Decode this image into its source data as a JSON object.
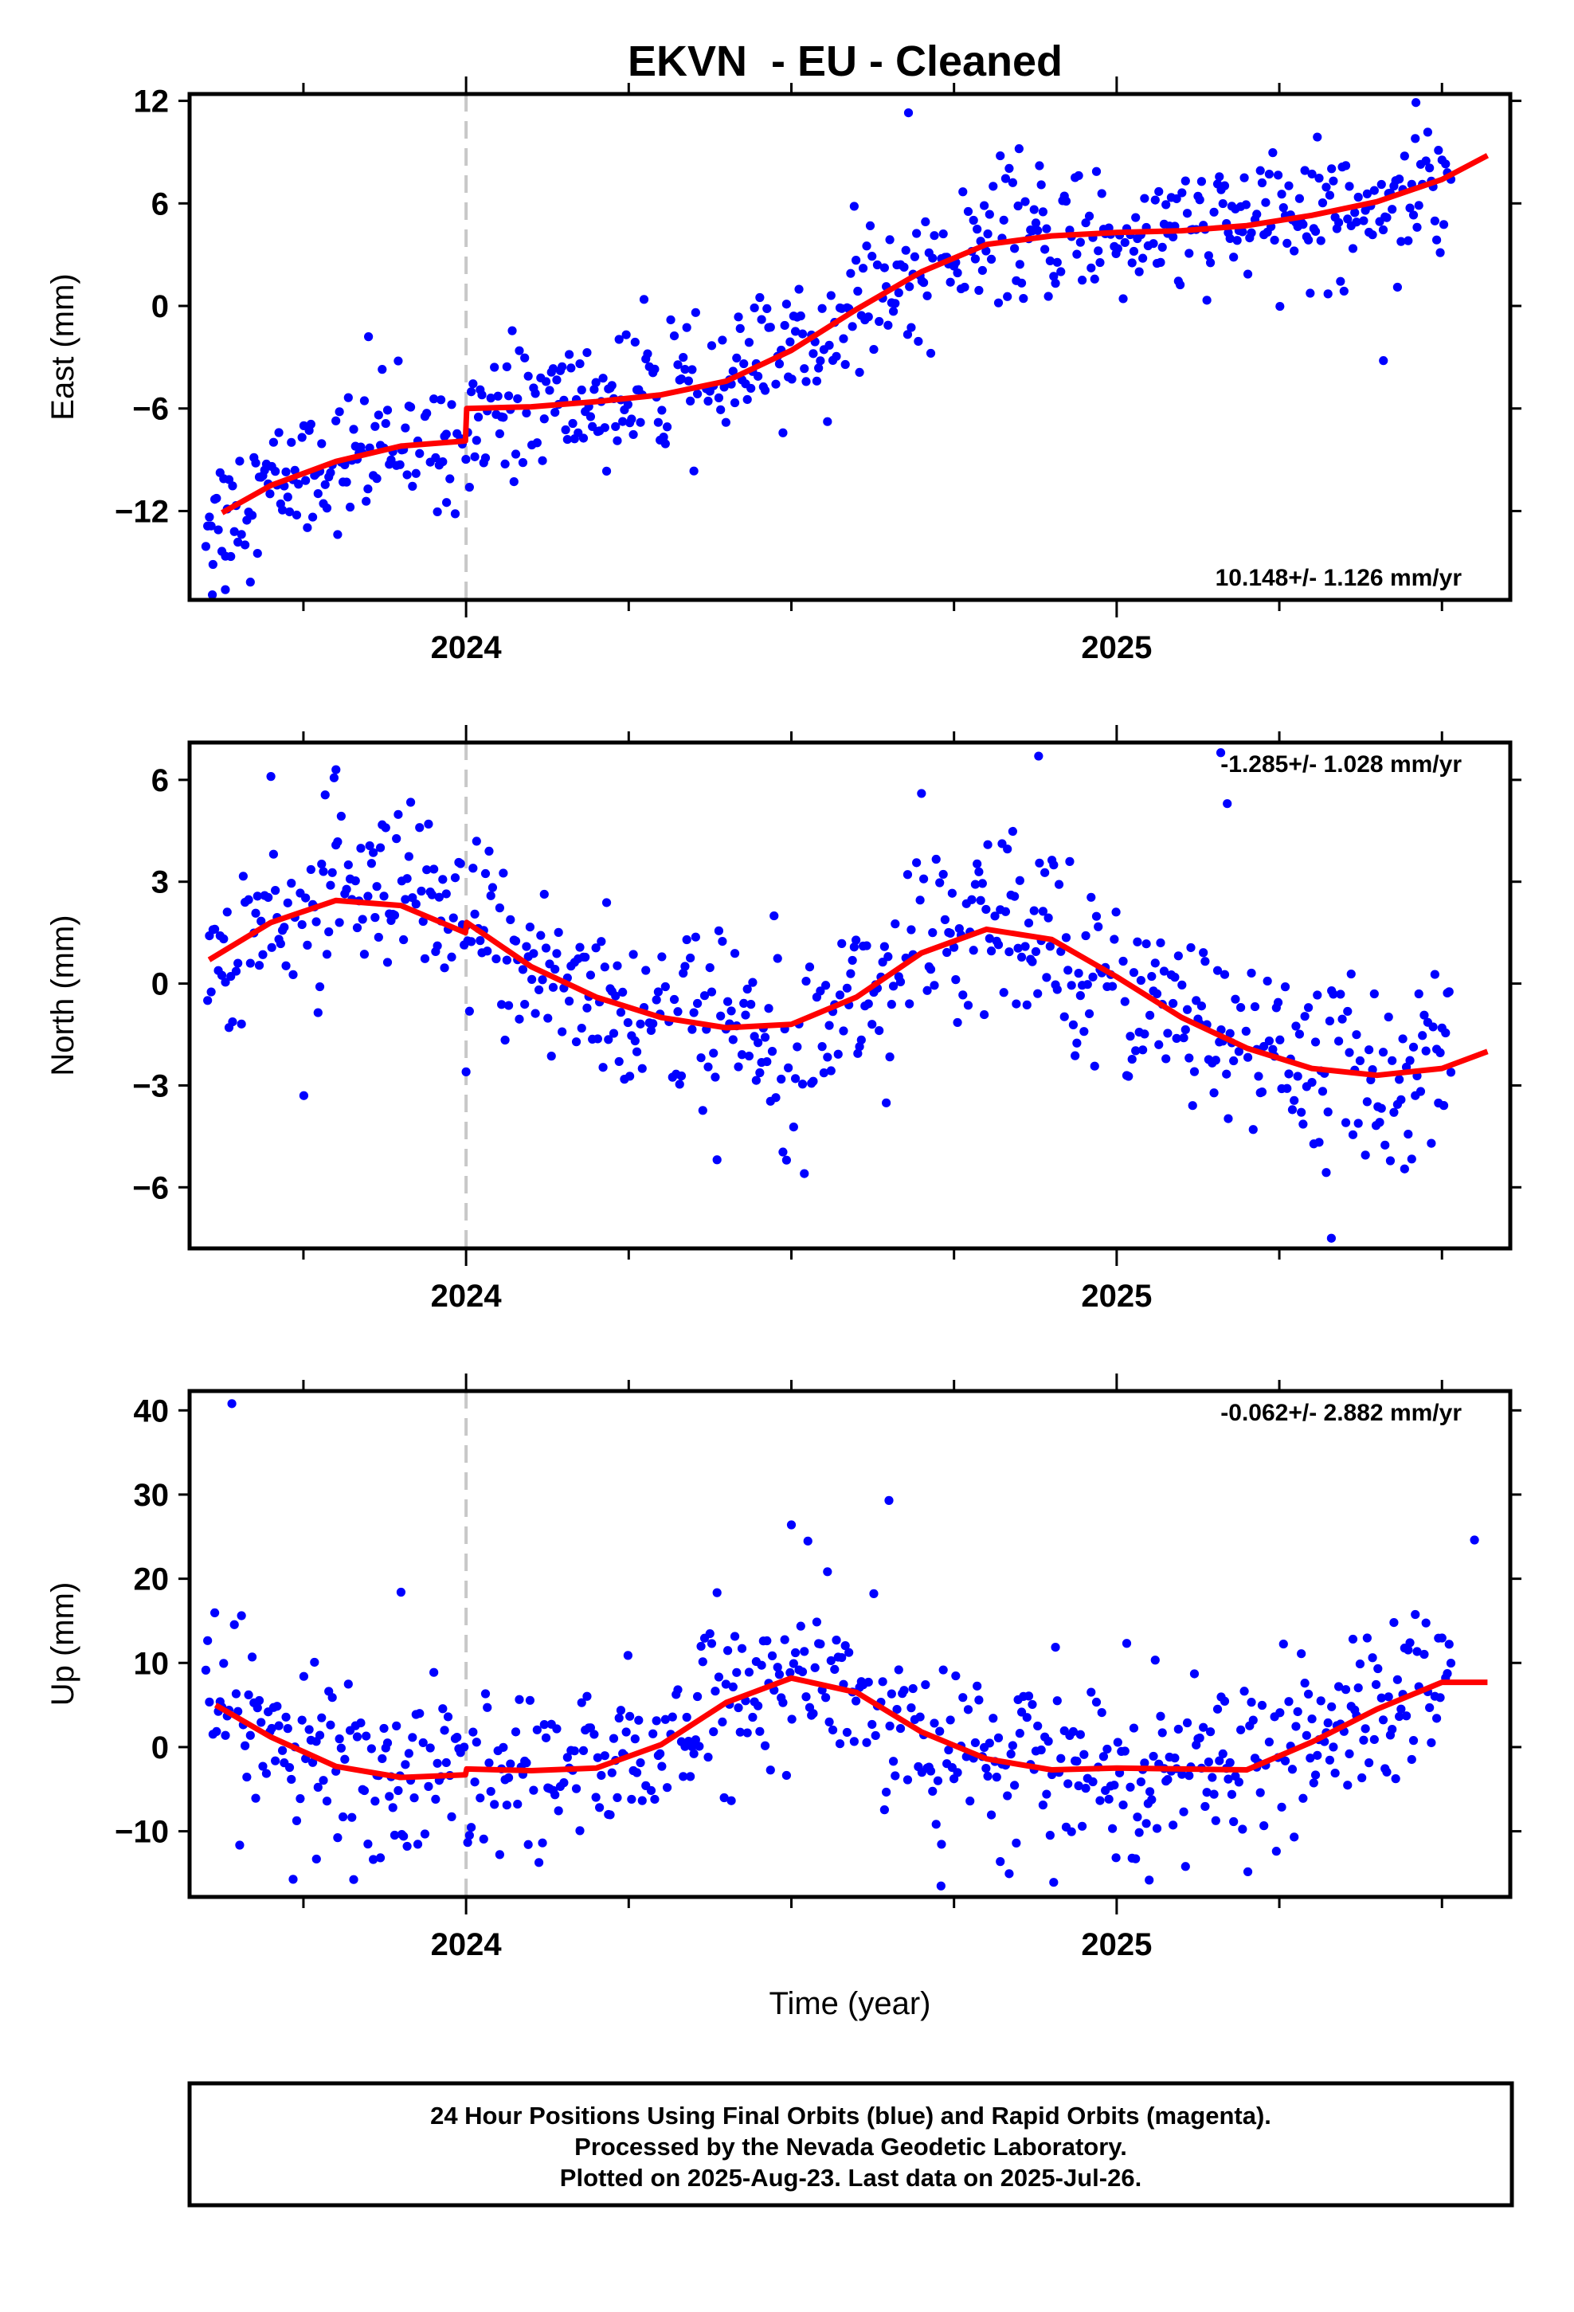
{
  "title": "EKVN  - EU - Cleaned",
  "footer": {
    "lines": [
      "24 Hour Positions Using Final Orbits (blue) and Rapid Orbits (magenta).",
      "Processed by the Nevada Geodetic Laboratory.",
      "Plotted on 2025-Aug-23. Last data on 2025-Jul-26."
    ]
  },
  "colors": {
    "points": "#0000ff",
    "fit": "#ff0000",
    "event_line": "#c8c8c8",
    "frame": "#000000"
  },
  "chart_data": [
    {
      "type": "scatter",
      "name": "east",
      "ylabel": "East (mm)",
      "xlabel": "",
      "xlim": [
        2023.575,
        2025.605
      ],
      "ylim": [
        -17.2,
        12.4
      ],
      "yticks": [
        -12,
        -6,
        0,
        6,
        12
      ],
      "xticks": [
        2024,
        2025
      ],
      "event_x": 2024.0,
      "rate_label": "10.148+/- 1.126 mm/yr",
      "rate_position": "bottom-right",
      "points_summary": "daily positions, approx one per day, scatter about fit with sd ~2 mm",
      "fit": {
        "x": [
          2023.625,
          2023.7,
          2023.8,
          2023.9,
          2023.999,
          2024.001,
          2024.1,
          2024.2,
          2024.3,
          2024.4,
          2024.5,
          2024.6,
          2024.7,
          2024.8,
          2024.9,
          2025.0,
          2025.1,
          2025.2,
          2025.3,
          2025.4,
          2025.5,
          2025.57
        ],
        "y": [
          -12.1,
          -10.5,
          -9.1,
          -8.2,
          -7.9,
          -6.0,
          -5.9,
          -5.6,
          -5.2,
          -4.4,
          -2.6,
          -0.2,
          2.0,
          3.6,
          4.1,
          4.3,
          4.4,
          4.7,
          5.3,
          6.1,
          7.4,
          8.8
        ]
      },
      "outliers": [
        {
          "x": 2023.63,
          "y": -16.6
        },
        {
          "x": 2023.61,
          "y": -16.9
        },
        {
          "x": 2023.85,
          "y": -1.8
        },
        {
          "x": 2024.68,
          "y": 11.3
        },
        {
          "x": 2025.41,
          "y": -3.2
        },
        {
          "x": 2025.46,
          "y": 11.9
        },
        {
          "x": 2023.97,
          "y": -11.5
        },
        {
          "x": 2024.85,
          "y": 9.2
        }
      ]
    },
    {
      "type": "scatter",
      "name": "north",
      "ylabel": "North (mm)",
      "xlabel": "",
      "xlim": [
        2023.575,
        2025.605
      ],
      "ylim": [
        -7.8,
        7.1
      ],
      "yticks": [
        -6,
        -3,
        0,
        3,
        6
      ],
      "xticks": [
        2024,
        2025
      ],
      "event_x": 2024.0,
      "rate_label": "-1.285+/- 1.028 mm/yr",
      "rate_position": "top-right",
      "points_summary": "daily positions, scatter about fit with sd ~1.4 mm",
      "fit": {
        "x": [
          2023.605,
          2023.7,
          2023.8,
          2023.9,
          2023.999,
          2024.001,
          2024.1,
          2024.2,
          2024.3,
          2024.4,
          2024.5,
          2024.6,
          2024.7,
          2024.8,
          2024.9,
          2025.0,
          2025.1,
          2025.2,
          2025.3,
          2025.4,
          2025.5,
          2025.57
        ],
        "y": [
          0.7,
          1.8,
          2.45,
          2.3,
          1.5,
          1.8,
          0.5,
          -0.4,
          -1.0,
          -1.3,
          -1.2,
          -0.4,
          0.9,
          1.6,
          1.3,
          0.2,
          -1.0,
          -1.9,
          -2.5,
          -2.7,
          -2.5,
          -2.0
        ]
      },
      "outliers": [
        {
          "x": 2023.8,
          "y": 6.3
        },
        {
          "x": 2023.7,
          "y": 6.1
        },
        {
          "x": 2024.88,
          "y": 6.7
        },
        {
          "x": 2025.16,
          "y": 6.8
        },
        {
          "x": 2025.33,
          "y": -7.5
        },
        {
          "x": 2025.17,
          "y": 5.3
        },
        {
          "x": 2024.7,
          "y": 5.6
        },
        {
          "x": 2024.0,
          "y": -2.6
        }
      ]
    },
    {
      "type": "scatter",
      "name": "up",
      "ylabel": "Up (mm)",
      "xlabel": "Time (year)",
      "xlim": [
        2023.575,
        2025.605
      ],
      "ylim": [
        -17.8,
        42.3
      ],
      "yticks": [
        -10,
        0,
        10,
        20,
        30,
        40
      ],
      "xticks": [
        2024,
        2025
      ],
      "event_x": 2024.0,
      "rate_label": "-0.062+/- 2.882 mm/yr",
      "rate_position": "top-right",
      "points_summary": "daily positions, scatter about fit with sd ~5 mm",
      "fit": {
        "x": [
          2023.615,
          2023.7,
          2023.8,
          2023.9,
          2023.999,
          2024.001,
          2024.1,
          2024.2,
          2024.3,
          2024.4,
          2024.5,
          2024.6,
          2024.7,
          2024.8,
          2024.9,
          2025.0,
          2025.1,
          2025.2,
          2025.3,
          2025.4,
          2025.5,
          2025.57
        ],
        "y": [
          5.0,
          1.2,
          -2.3,
          -3.6,
          -3.3,
          -2.6,
          -2.8,
          -2.5,
          0.3,
          5.3,
          8.2,
          6.5,
          1.8,
          -1.4,
          -2.7,
          -2.5,
          -2.6,
          -2.7,
          0.6,
          4.5,
          7.7,
          7.7
        ]
      },
      "outliers": [
        {
          "x": 2023.64,
          "y": 40.8
        },
        {
          "x": 2024.65,
          "y": 29.3
        },
        {
          "x": 2024.5,
          "y": 26.4
        },
        {
          "x": 2023.9,
          "y": 18.4
        },
        {
          "x": 2025.55,
          "y": 24.6
        },
        {
          "x": 2024.73,
          "y": -16.5
        },
        {
          "x": 2025.05,
          "y": -15.8
        },
        {
          "x": 2023.77,
          "y": -13.3
        }
      ]
    }
  ]
}
